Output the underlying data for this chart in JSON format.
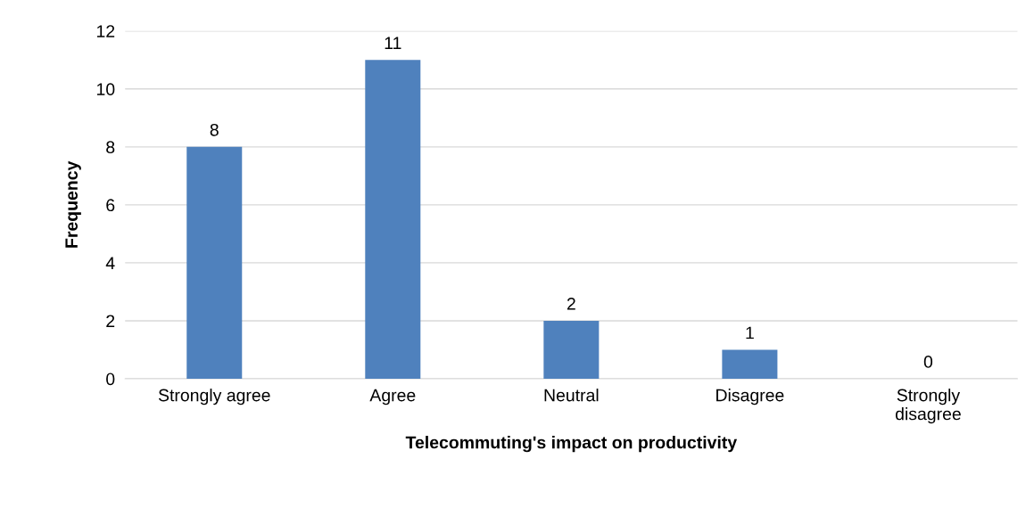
{
  "chart_data": {
    "type": "bar",
    "xlabel": "Telecommuting's impact on productivity",
    "ylabel": "Frequency",
    "categories": [
      "Strongly agree",
      "Agree",
      "Neutral",
      "Disagree",
      "Strongly\ndisagree"
    ],
    "values": [
      8,
      11,
      2,
      1,
      0
    ],
    "color": "#4f81bd",
    "ylim": [
      0,
      12
    ],
    "yticks": [
      0,
      2,
      4,
      6,
      8,
      10,
      12
    ],
    "grid": "y",
    "data_labels": true,
    "legend": false
  }
}
